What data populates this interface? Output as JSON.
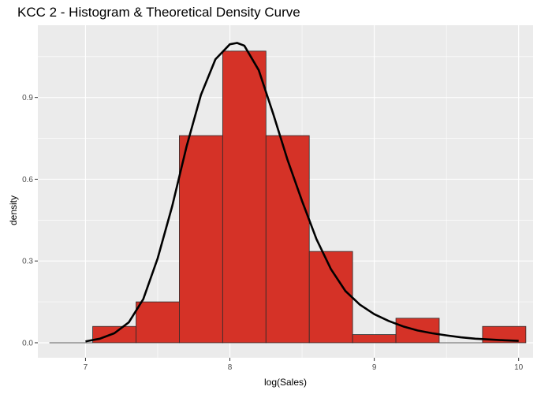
{
  "chart_data": {
    "type": "bar",
    "title": "KCC 2 - Histogram & Theoretical Density Curve",
    "xlabel": "log(Sales)",
    "ylabel": "density",
    "xlim": [
      6.67,
      10.1
    ],
    "ylim": [
      -0.055,
      1.165
    ],
    "x_ticks": [
      7,
      8,
      9,
      10
    ],
    "x_tick_labels": [
      "7",
      "8",
      "9",
      "10"
    ],
    "y_ticks": [
      0.0,
      0.3,
      0.6,
      0.9
    ],
    "y_tick_labels": [
      "0.0",
      "0.3",
      "0.6",
      "0.9"
    ],
    "grid": true,
    "bar_fill": "#d53227",
    "bar_edge": "#2b2b2b",
    "panel_background": "#ebebeb",
    "grid_color": "#ffffff",
    "curve_color": "#000000",
    "bins": [
      {
        "start": 6.75,
        "end": 7.05,
        "density": 0.0
      },
      {
        "start": 7.05,
        "end": 7.35,
        "density": 0.06
      },
      {
        "start": 7.35,
        "end": 7.65,
        "density": 0.15
      },
      {
        "start": 7.65,
        "end": 7.95,
        "density": 0.76
      },
      {
        "start": 7.95,
        "end": 8.25,
        "density": 1.07
      },
      {
        "start": 8.25,
        "end": 8.55,
        "density": 0.76
      },
      {
        "start": 8.55,
        "end": 8.85,
        "density": 0.335
      },
      {
        "start": 8.85,
        "end": 9.15,
        "density": 0.03
      },
      {
        "start": 9.15,
        "end": 9.45,
        "density": 0.09
      },
      {
        "start": 9.45,
        "end": 9.75,
        "density": 0.0
      },
      {
        "start": 9.75,
        "end": 10.05,
        "density": 0.06
      }
    ],
    "density_curve": {
      "x": [
        7.0,
        7.1,
        7.2,
        7.3,
        7.4,
        7.5,
        7.6,
        7.7,
        7.8,
        7.9,
        8.0,
        8.05,
        8.1,
        8.2,
        8.3,
        8.4,
        8.5,
        8.6,
        8.7,
        8.8,
        8.9,
        9.0,
        9.1,
        9.2,
        9.3,
        9.4,
        9.5,
        9.6,
        9.7,
        9.8,
        9.9,
        10.0
      ],
      "y": [
        0.005,
        0.015,
        0.035,
        0.075,
        0.16,
        0.31,
        0.5,
        0.72,
        0.91,
        1.04,
        1.095,
        1.1,
        1.09,
        1.0,
        0.84,
        0.67,
        0.52,
        0.38,
        0.27,
        0.19,
        0.14,
        0.105,
        0.08,
        0.06,
        0.045,
        0.035,
        0.027,
        0.02,
        0.015,
        0.012,
        0.009,
        0.007
      ]
    }
  }
}
